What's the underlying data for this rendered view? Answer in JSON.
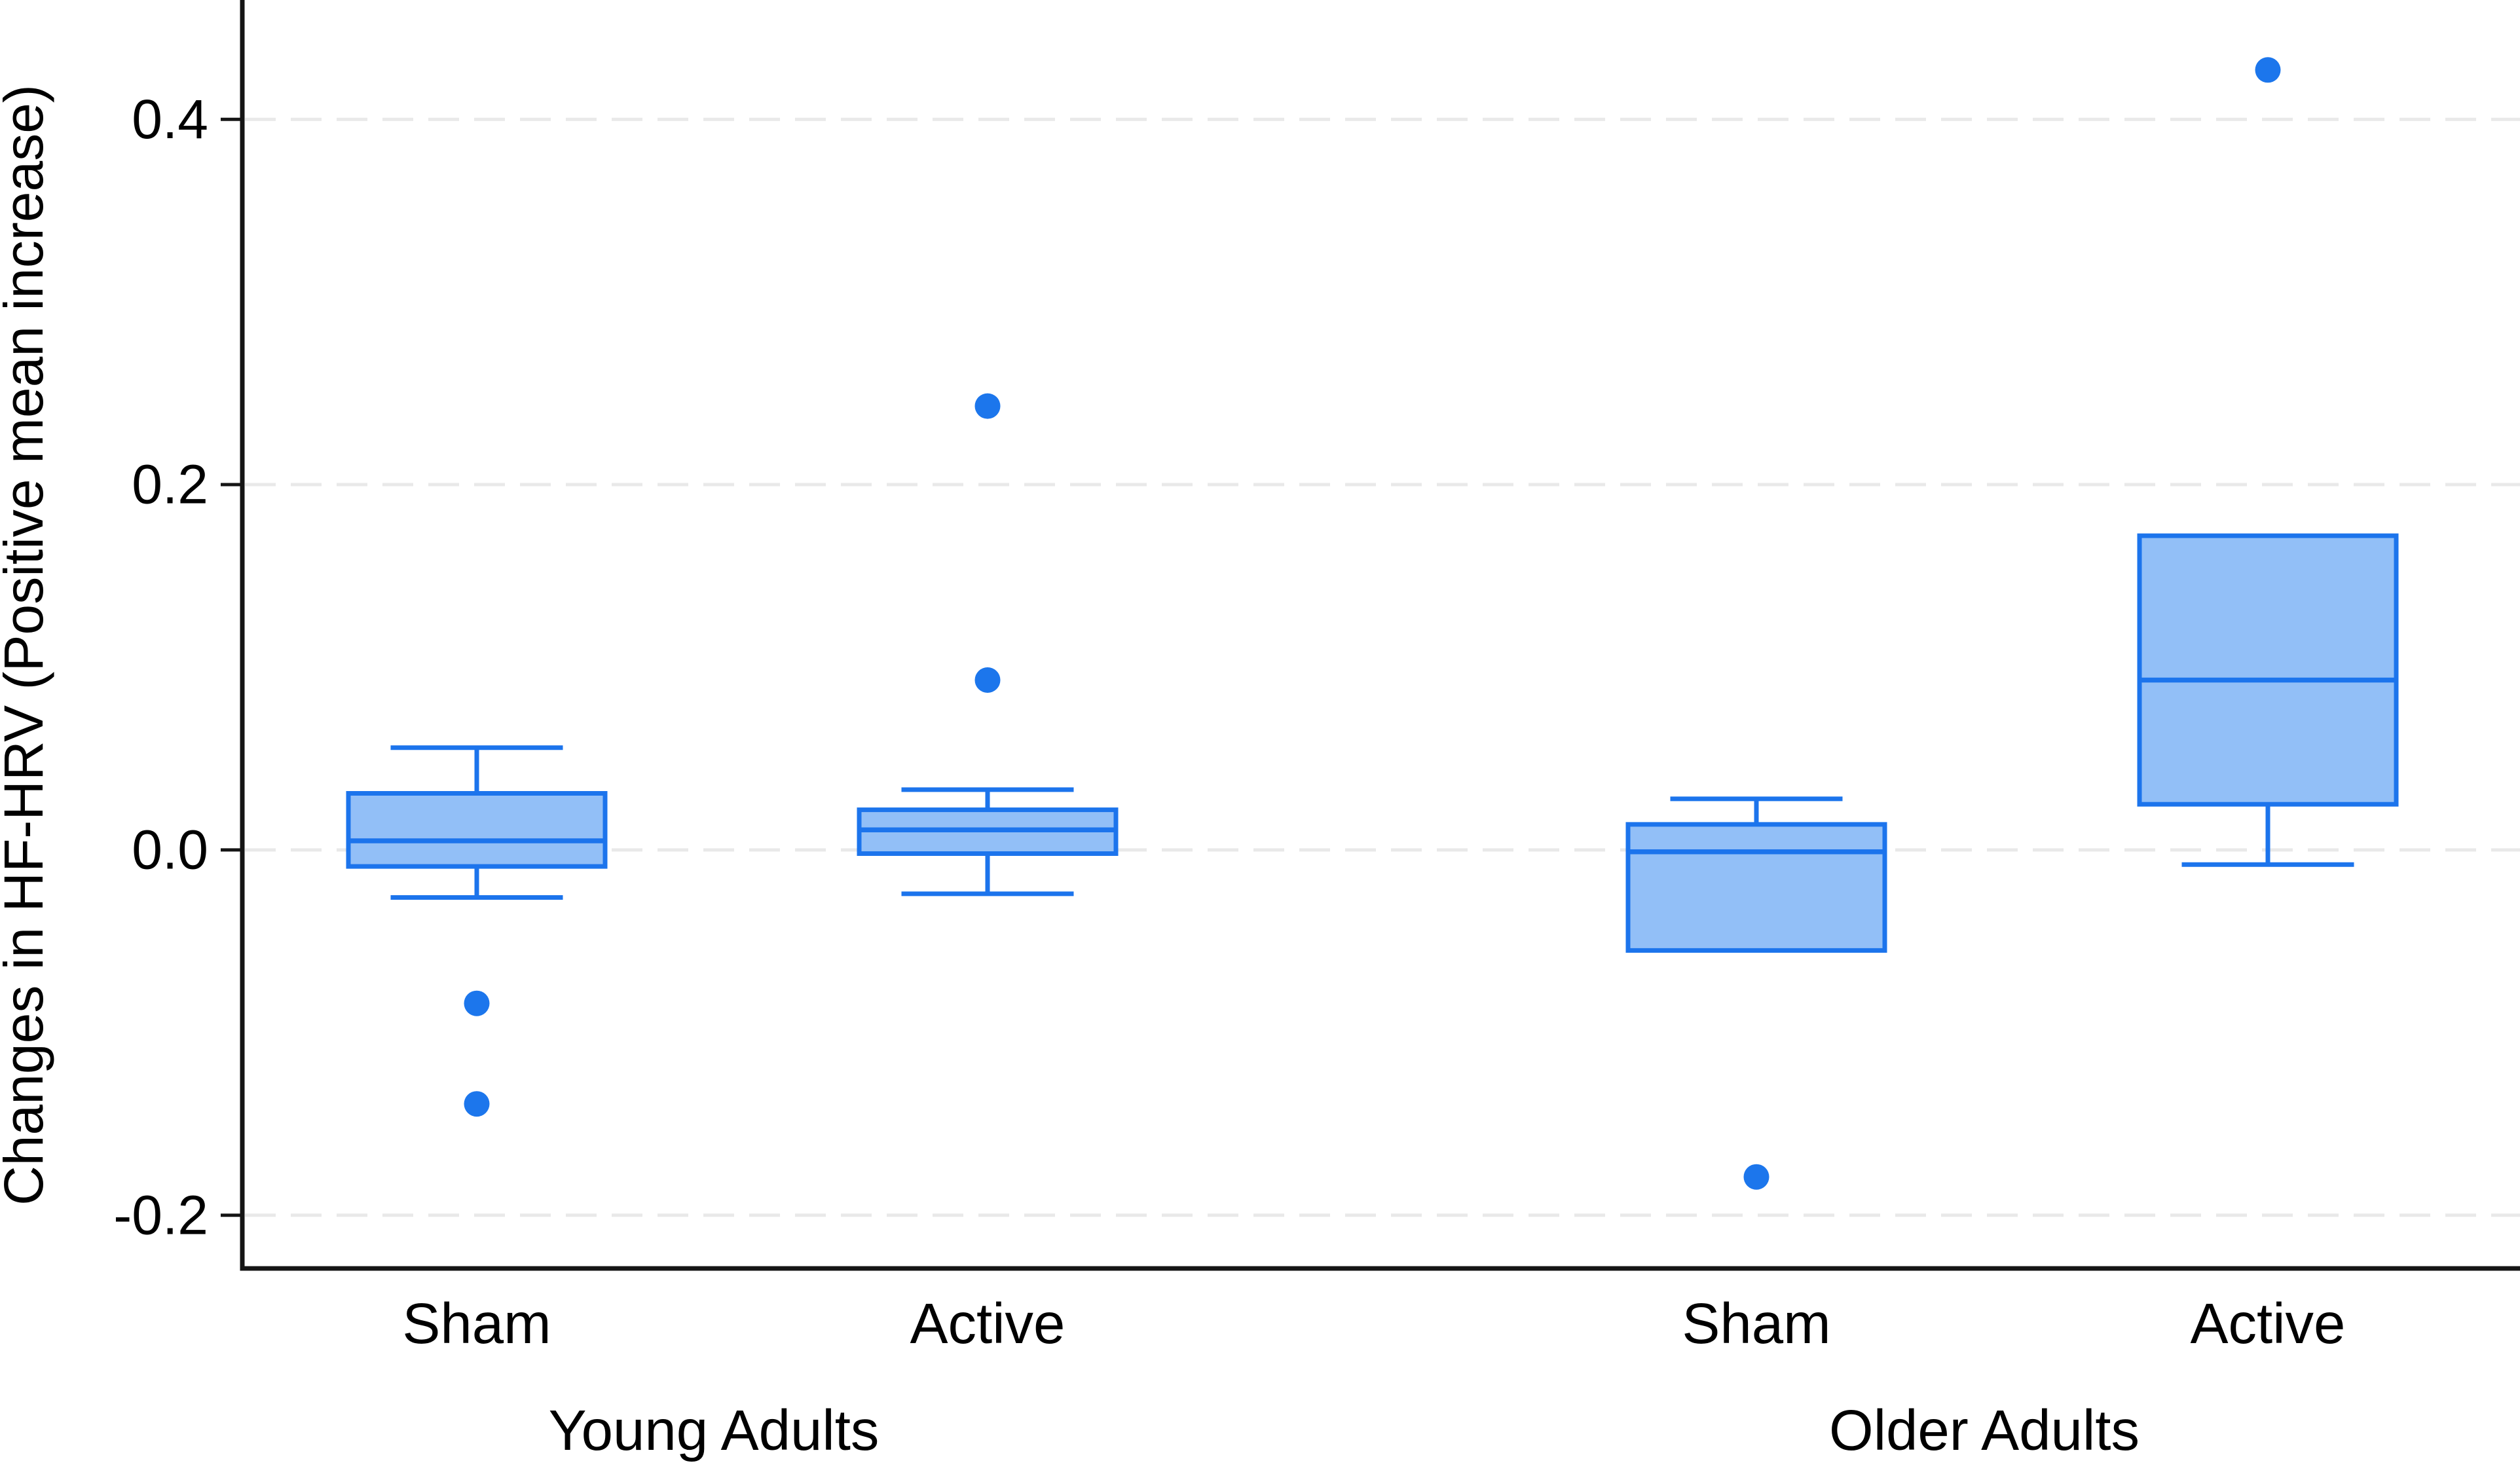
{
  "figure": {
    "background": "#ffffff",
    "title": ""
  },
  "chart_data": {
    "type": "boxplot",
    "title": "",
    "xlabel": "",
    "ylabel": "Changes in HF-HRV (Positive mean increase)",
    "groups": [
      "Young Adults",
      "Older Adults"
    ],
    "categories": [
      "Sham",
      "Active",
      "Sham",
      "Active"
    ],
    "series": [
      {
        "group": "Young Adults",
        "condition": "Sham",
        "whisker_low": -0.026,
        "q1": -0.009,
        "median": 0.005,
        "q3": 0.031,
        "whisker_high": 0.056,
        "outliers": [
          -0.084,
          -0.139
        ]
      },
      {
        "group": "Young Adults",
        "condition": "Active",
        "whisker_low": -0.024,
        "q1": -0.002,
        "median": 0.011,
        "q3": 0.022,
        "whisker_high": 0.033,
        "outliers": [
          0.093,
          0.243
        ]
      },
      {
        "group": "Older Adults",
        "condition": "Sham",
        "whisker_low": -0.055,
        "q1": -0.055,
        "median": -0.001,
        "q3": 0.014,
        "whisker_high": 0.028,
        "outliers": [
          -0.179
        ]
      },
      {
        "group": "Older Adults",
        "condition": "Active",
        "whisker_low": -0.008,
        "q1": 0.025,
        "median": 0.093,
        "q3": 0.172,
        "whisker_high": 0.172,
        "outliers": [
          0.427
        ]
      }
    ],
    "y_ticks": [
      -0.2,
      0.0,
      0.2,
      0.4
    ],
    "ylim": [
      -0.2291,
      0.4653
    ],
    "grid": "horizontal dashed lines at each y tick",
    "legend": "none",
    "colors": {
      "box_fill": "#92BFF7",
      "box_stroke": "#1C74EC",
      "outlier": "#1C76EC",
      "grid": "#E9E9E9",
      "axis": "#151515",
      "text": "#000000"
    }
  }
}
